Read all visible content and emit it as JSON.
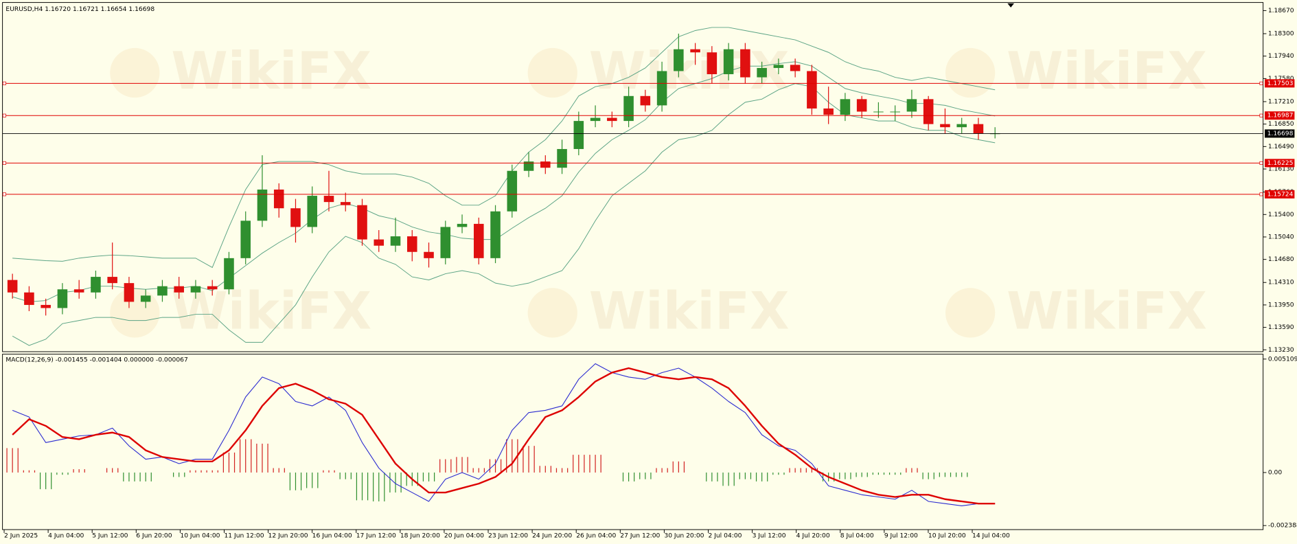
{
  "watermark": "WikiFX",
  "chart_data": [
    {
      "type": "candlestick",
      "title": "EURUSD,H4  1.16720 1.16721 1.16654 1.16698",
      "ylim": [
        1.132,
        1.188
      ],
      "yticks": [
        {
          "value": 1.1867,
          "label": "1.18670"
        },
        {
          "value": 1.183,
          "label": "1.18300"
        },
        {
          "value": 1.1794,
          "label": "1.17940"
        },
        {
          "value": 1.1758,
          "label": "1.17580"
        },
        {
          "value": 1.1721,
          "label": "1.17210"
        },
        {
          "value": 1.1685,
          "label": "1.16850"
        },
        {
          "value": 1.1649,
          "label": "1.16490"
        },
        {
          "value": 1.1613,
          "label": "1.16130"
        },
        {
          "value": 1.1576,
          "label": "1.15760"
        },
        {
          "value": 1.154,
          "label": "1.15400"
        },
        {
          "value": 1.1504,
          "label": "1.15040"
        },
        {
          "value": 1.1468,
          "label": "1.14680"
        },
        {
          "value": 1.1431,
          "label": "1.14310"
        },
        {
          "value": 1.1395,
          "label": "1.13950"
        },
        {
          "value": 1.1359,
          "label": "1.13590"
        },
        {
          "value": 1.1323,
          "label": "1.13230"
        }
      ],
      "open": [
        1.1435,
        1.1415,
        1.1395,
        1.139,
        1.142,
        1.1415,
        1.144,
        1.143,
        1.14,
        1.141,
        1.1425,
        1.1415,
        1.1425,
        1.142,
        1.147,
        1.153,
        1.158,
        1.155,
        1.152,
        1.157,
        1.156,
        1.1555,
        1.15,
        1.149,
        1.1505,
        1.148,
        1.147,
        1.152,
        1.1525,
        1.147,
        1.1545,
        1.161,
        1.1625,
        1.1615,
        1.1645,
        1.169,
        1.1695,
        1.169,
        1.173,
        1.1715,
        1.177,
        1.1805,
        1.18,
        1.1765,
        1.1805,
        1.176,
        1.1775,
        1.178,
        1.177,
        1.171,
        1.17,
        1.1725,
        1.1705,
        1.1705,
        1.1705,
        1.1725,
        1.1685,
        1.168,
        1.1685,
        1.167
      ],
      "high": [
        1.1445,
        1.1425,
        1.1405,
        1.143,
        1.1435,
        1.145,
        1.1495,
        1.144,
        1.142,
        1.1435,
        1.144,
        1.1435,
        1.1435,
        1.148,
        1.1545,
        1.1635,
        1.159,
        1.1565,
        1.1585,
        1.161,
        1.1575,
        1.1565,
        1.1515,
        1.1535,
        1.1515,
        1.1495,
        1.153,
        1.154,
        1.1535,
        1.1555,
        1.162,
        1.164,
        1.1635,
        1.166,
        1.1705,
        1.1715,
        1.1705,
        1.1745,
        1.174,
        1.1785,
        1.183,
        1.1815,
        1.181,
        1.1815,
        1.1815,
        1.1785,
        1.179,
        1.179,
        1.178,
        1.1745,
        1.1735,
        1.173,
        1.172,
        1.1715,
        1.174,
        1.173,
        1.171,
        1.1695,
        1.1695,
        1.168
      ],
      "low": [
        1.1405,
        1.1385,
        1.1378,
        1.138,
        1.1405,
        1.1405,
        1.142,
        1.139,
        1.139,
        1.14,
        1.1405,
        1.1405,
        1.141,
        1.1412,
        1.146,
        1.152,
        1.1535,
        1.1495,
        1.151,
        1.1545,
        1.1545,
        1.149,
        1.148,
        1.148,
        1.1465,
        1.1455,
        1.146,
        1.151,
        1.146,
        1.1462,
        1.1535,
        1.16,
        1.1605,
        1.1605,
        1.1635,
        1.168,
        1.168,
        1.168,
        1.1705,
        1.1705,
        1.176,
        1.178,
        1.175,
        1.1755,
        1.175,
        1.175,
        1.1765,
        1.176,
        1.17,
        1.1685,
        1.169,
        1.1695,
        1.1695,
        1.169,
        1.1695,
        1.1675,
        1.167,
        1.167,
        1.166,
        1.1662
      ],
      "close": [
        1.1415,
        1.1395,
        1.139,
        1.142,
        1.1415,
        1.144,
        1.143,
        1.14,
        1.141,
        1.1425,
        1.1415,
        1.1425,
        1.142,
        1.147,
        1.153,
        1.158,
        1.155,
        1.152,
        1.157,
        1.156,
        1.1555,
        1.15,
        1.149,
        1.1505,
        1.148,
        1.147,
        1.152,
        1.1525,
        1.147,
        1.1545,
        1.161,
        1.1625,
        1.1615,
        1.1645,
        1.169,
        1.1695,
        1.169,
        1.173,
        1.1715,
        1.177,
        1.1805,
        1.18,
        1.1765,
        1.1805,
        1.176,
        1.1775,
        1.178,
        1.177,
        1.171,
        1.17,
        1.1725,
        1.1705,
        1.1705,
        1.1705,
        1.1725,
        1.1685,
        1.168,
        1.1685,
        1.167,
        1.167
      ],
      "up_color": "#2f8f2f",
      "down_color": "#e01010",
      "bands": {
        "color": "#5aa384",
        "upper": [
          1.147,
          1.1468,
          1.1466,
          1.1465,
          1.147,
          1.1473,
          1.1475,
          1.1474,
          1.1472,
          1.147,
          1.147,
          1.147,
          1.1455,
          1.152,
          1.158,
          1.162,
          1.1625,
          1.1625,
          1.1625,
          1.162,
          1.161,
          1.1605,
          1.1605,
          1.1605,
          1.16,
          1.159,
          1.157,
          1.1555,
          1.1555,
          1.157,
          1.161,
          1.164,
          1.166,
          1.169,
          1.173,
          1.1745,
          1.175,
          1.176,
          1.1775,
          1.18,
          1.1825,
          1.1835,
          1.184,
          1.184,
          1.1835,
          1.183,
          1.1825,
          1.182,
          1.181,
          1.18,
          1.1785,
          1.1775,
          1.177,
          1.176,
          1.1755,
          1.176,
          1.1755,
          1.175,
          1.1745,
          1.174
        ],
        "middle": [
          1.1408,
          1.14,
          1.1402,
          1.1415,
          1.1418,
          1.1425,
          1.1425,
          1.1422,
          1.142,
          1.1422,
          1.1422,
          1.1425,
          1.1418,
          1.1438,
          1.1458,
          1.1478,
          1.1495,
          1.151,
          1.1532,
          1.155,
          1.1558,
          1.155,
          1.1538,
          1.1532,
          1.152,
          1.1512,
          1.1508,
          1.1502,
          1.15,
          1.15,
          1.1518,
          1.1535,
          1.155,
          1.157,
          1.1608,
          1.1638,
          1.166,
          1.1675,
          1.1692,
          1.172,
          1.1742,
          1.175,
          1.1758,
          1.177,
          1.1778,
          1.1778,
          1.1782,
          1.1785,
          1.1778,
          1.176,
          1.1742,
          1.1735,
          1.173,
          1.1725,
          1.1718,
          1.1718,
          1.1715,
          1.1708,
          1.1703,
          1.1698
        ],
        "lower": [
          1.1345,
          1.133,
          1.134,
          1.1365,
          1.137,
          1.1375,
          1.1375,
          1.137,
          1.137,
          1.1375,
          1.1375,
          1.138,
          1.138,
          1.1355,
          1.1335,
          1.1335,
          1.1365,
          1.1395,
          1.144,
          1.148,
          1.1505,
          1.1495,
          1.147,
          1.146,
          1.144,
          1.1435,
          1.1445,
          1.145,
          1.1445,
          1.143,
          1.1425,
          1.143,
          1.144,
          1.145,
          1.1485,
          1.153,
          1.157,
          1.159,
          1.161,
          1.164,
          1.166,
          1.1665,
          1.1675,
          1.17,
          1.172,
          1.1725,
          1.174,
          1.175,
          1.1745,
          1.172,
          1.17,
          1.1695,
          1.169,
          1.169,
          1.168,
          1.1675,
          1.1675,
          1.1665,
          1.166,
          1.1655
        ]
      },
      "levels": [
        1.17503,
        1.16987,
        1.16225,
        1.15724
      ],
      "level_color": "#e00000",
      "last_price": 1.16698
    },
    {
      "type": "macd",
      "title": "MACD(12,26,9) -0.001455 -0.001404 0.000000 -0.000067",
      "ylim": [
        -0.00257,
        0.00533
      ],
      "yticks": [
        0.005109,
        {
          "value": 0,
          "label": "0.00"
        },
        -0.002388
      ],
      "macd": [
        0.0028,
        0.0025,
        0.00135,
        0.0015,
        0.00165,
        0.0017,
        0.002,
        0.0012,
        0.0006,
        0.0007,
        0.0004,
        0.0006,
        0.0006,
        0.0019,
        0.0034,
        0.0043,
        0.004,
        0.0032,
        0.003,
        0.0034,
        0.0028,
        0.00135,
        0.0002,
        -0.0005,
        -0.0009,
        -0.0013,
        -0.0003,
        0,
        -0.0003,
        0.0004,
        0.0019,
        0.0027,
        0.0028,
        0.003,
        0.0042,
        0.0049,
        0.0045,
        0.0043,
        0.0042,
        0.0045,
        0.0047,
        0.0043,
        0.0038,
        0.0032,
        0.0027,
        0.0017,
        0.0012,
        0.001,
        0.0004,
        -0.0006,
        -0.0008,
        -0.001,
        -0.0011,
        -0.0012,
        -0.0008,
        -0.0013,
        -0.0014,
        -0.0015,
        -0.0014,
        -0.0014
      ],
      "signal": [
        0.0017,
        0.0024,
        0.0021,
        0.0016,
        0.0015,
        0.0017,
        0.0018,
        0.0016,
        0.001,
        0.0007,
        0.0006,
        0.0005,
        0.0005,
        0.001,
        0.0019,
        0.003,
        0.0038,
        0.004,
        0.0037,
        0.0033,
        0.0031,
        0.0026,
        0.0015,
        0.0004,
        -0.0003,
        -0.0009,
        -0.0009,
        -0.0007,
        -0.0005,
        -0.0002,
        0.0004,
        0.0015,
        0.0025,
        0.0028,
        0.0034,
        0.0041,
        0.0045,
        0.0047,
        0.0045,
        0.0043,
        0.0042,
        0.0043,
        0.0042,
        0.0038,
        0.003,
        0.0021,
        0.0013,
        0.0008,
        0.0002,
        -0.0002,
        -0.0005,
        -0.0008,
        -0.001,
        -0.0011,
        -0.001,
        -0.001,
        -0.0012,
        -0.0013,
        -0.0014,
        -0.0014
      ],
      "histogram": [
        0.0011,
        0.0001,
        -0.00075,
        -0.0001,
        0.00015,
        0,
        0.0002,
        -0.0004,
        -0.0004,
        0,
        -0.0002,
        0.0001,
        0.0001,
        0.0009,
        0.0015,
        0.0013,
        0.0002,
        -0.0008,
        -0.0007,
        0.0001,
        -0.0003,
        -0.00125,
        -0.0013,
        -0.0009,
        -0.0006,
        -0.0004,
        0.0006,
        0.0007,
        0.0002,
        0.0006,
        0.0015,
        0.0012,
        0.0003,
        0.0002,
        0.0008,
        0.0008,
        0,
        -0.0004,
        -0.0003,
        0.0002,
        0.0005,
        0,
        -0.0004,
        -0.0006,
        -0.0003,
        -0.0004,
        -0.0001,
        0.0002,
        0.0002,
        -0.0004,
        -0.0003,
        -0.0002,
        -0.0001,
        -0.0001,
        0.0002,
        -0.0003,
        -0.0002,
        -0.0002,
        0,
        0
      ],
      "macd_color": "#2a2ad0",
      "signal_color": "#dd0000",
      "positive_color": "#d22020",
      "negative_color": "#2f8f2f",
      "xlabels": [
        "2 Jun 2025",
        "4 Jun 04:00",
        "5 Jun 12:00",
        "6 Jun 20:00",
        "10 Jun 04:00",
        "11 Jun 12:00",
        "12 Jun 20:00",
        "16 Jun 04:00",
        "17 Jun 12:00",
        "18 Jun 20:00",
        "20 Jun 04:00",
        "23 Jun 12:00",
        "24 Jun 20:00",
        "26 Jun 04:00",
        "27 Jun 12:00",
        "30 Jun 20:00",
        "2 Jul 04:00",
        "3 Jul 12:00",
        "4 Jul 20:00",
        "8 Jul 04:00",
        "9 Jul 12:00",
        "10 Jul 20:00",
        "14 Jul 04:00"
      ]
    }
  ]
}
